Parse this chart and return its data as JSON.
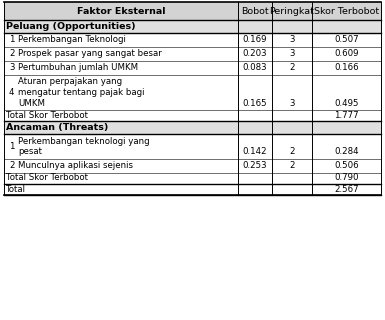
{
  "col_headers": [
    "Faktor Eksternal",
    "Bobot",
    "Peringkat",
    "Skor Terbobot"
  ],
  "section_peluang": "Peluang (Opportunities)",
  "section_ancaman": "Ancaman (Threats)",
  "rows_peluang": [
    {
      "no": "1",
      "faktor": "Perkembangan Teknologi",
      "bobot": "0.169",
      "peringkat": "3",
      "skor": "0.507",
      "lines": 1
    },
    {
      "no": "2",
      "faktor": "Prospek pasar yang sangat besar",
      "bobot": "0.203",
      "peringkat": "3",
      "skor": "0.609",
      "lines": 1
    },
    {
      "no": "3",
      "faktor": "Pertumbuhan jumlah UMKM",
      "bobot": "0.083",
      "peringkat": "2",
      "skor": "0.166",
      "lines": 1
    },
    {
      "no": "4",
      "faktor_lines": [
        "Aturan perpajakan yang",
        "mengatur tentang pajak bagi",
        "UMKM"
      ],
      "bobot": "0.165",
      "peringkat": "3",
      "skor": "0.495",
      "lines": 3
    }
  ],
  "total_peluang": {
    "label": "Total Skor Terbobot",
    "skor": "1.777"
  },
  "rows_ancaman": [
    {
      "no": "1",
      "faktor_lines": [
        "Perkembangan teknologi yang",
        "pesat"
      ],
      "bobot": "0.142",
      "peringkat": "2",
      "skor": "0.284",
      "lines": 2
    },
    {
      "no": "2",
      "faktor": "Munculnya aplikasi sejenis",
      "bobot": "0.253",
      "peringkat": "2",
      "skor": "0.506",
      "lines": 1
    }
  ],
  "total_ancaman": {
    "label": "Total Skor Terbobot",
    "skor": "0.790"
  },
  "total_all": {
    "label": "Total",
    "skor": "2.567"
  },
  "bg_header": "#d3d3d3",
  "bg_section": "#e0e0e0",
  "bg_white": "#ffffff",
  "line_color": "#000000",
  "font_size": 6.2,
  "font_size_hdr": 6.8
}
